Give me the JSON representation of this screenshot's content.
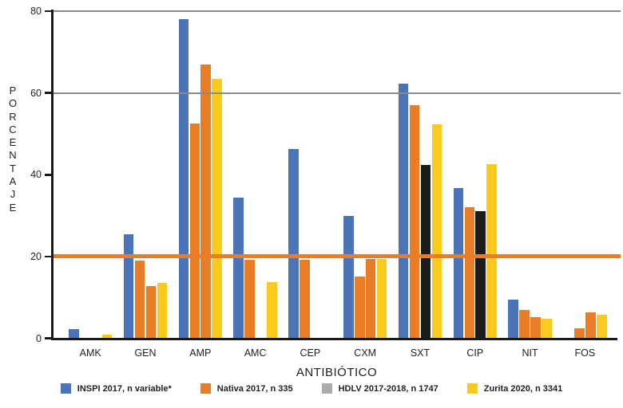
{
  "chart_data": {
    "type": "bar",
    "title": "",
    "xlabel": "ANTIBIÓTICO",
    "ylabel": "PORCENTAJE",
    "ylabel_letters": [
      "P",
      "O",
      "R",
      "C",
      "E",
      "N",
      "T",
      "A",
      "J",
      "E"
    ],
    "ylim": [
      0,
      80
    ],
    "yticks": [
      0,
      20,
      40,
      60,
      80
    ],
    "gridlines": [
      60,
      80
    ],
    "gridline_color": "#8a8a8a",
    "reference_line": {
      "value": 20,
      "color": "#e87d26"
    },
    "legend_position": "bottom",
    "categories": [
      "AMK",
      "GEN",
      "AMP",
      "AMC",
      "CEP",
      "CXM",
      "SXT",
      "CIP",
      "NIT",
      "FOS"
    ],
    "series": [
      {
        "name": "INSPI 2017, n variable*",
        "color": "#4a73b8",
        "values": [
          2.2,
          25.5,
          78,
          34.3,
          46.3,
          30,
          62.2,
          36.7,
          9.5,
          null
        ]
      },
      {
        "name": "Nativa 2017, n 335",
        "color": "#e87d26",
        "values": [
          null,
          19,
          52.5,
          19.2,
          19.2,
          15.2,
          57,
          32,
          7,
          2.5
        ]
      },
      {
        "name": "HDLV 2017-2018, n 1747",
        "color": "#ababab",
        "bar_colors": [
          null,
          "#e87d26",
          "#e87d26",
          null,
          null,
          "#e87d26",
          "#1c1c1c",
          "#1c1c1c",
          "#e87d26",
          "#e87d26"
        ],
        "values": [
          null,
          12.8,
          67,
          null,
          null,
          19.3,
          42.4,
          31,
          5.1,
          6.3
        ]
      },
      {
        "name": "Zurita 2020, n 3341",
        "color": "#fcca1d",
        "values": [
          0.8,
          13.5,
          63.5,
          13.7,
          null,
          19.3,
          52.3,
          42.6,
          4.8,
          5.7
        ]
      }
    ]
  }
}
